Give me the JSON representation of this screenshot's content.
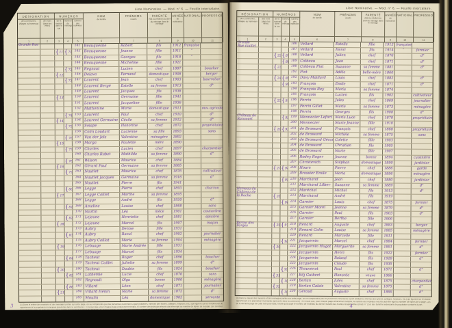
{
  "scan": {
    "caption": "Liste Nominative. — Mod. n° 6. — Feuille intercalaire.",
    "ink_color": "#7a57a2",
    "paper_color": "#e9e2cb",
    "backdrop_color": "#12100c",
    "footnote_lines": [
      "(1) Dans le relevé des maisons et des ménages portés sur cette page, on ne comprendra pas les personnes recensées à part (militaires, internes des lycées, collèges, hospices, etc.) qui figurent sur les bordereaux des établissements comptés à part, mais seulement la population",
      "appartenant à la population municipale (présente dans la commune) ; il s'ensuit que, pour chaque page entièrement remplie, le nombre des individus inscrits doit être égal au nombre de lignes de la page. Les communes à population comptée à part porteront, par suite, l'indication du numéro",
      "de la dernière page de cette liste pour total, l'ordre qu'occupe le numéro de l'individu du dernier bulletin des feuilles récapitulatives (mod. n° 2) et des bulletins individuels de population comptée à part."
    ]
  },
  "header": {
    "designation": {
      "title": "DÉSIGNATION",
      "sub": [
        "des communes, villages ou hameaux",
        "des rues (dans les villes)"
      ]
    },
    "numeros": {
      "title": "NUMÉROS",
      "sub": [
        "de la maison dans la rue",
        "numéro du ménage",
        "numéro des individus"
      ]
    },
    "columns": [
      {
        "title": "NOM",
        "sub": "de famille"
      },
      {
        "title": "PRÉNOMS",
        "sub": "usuels"
      },
      {
        "title": "PARENTÉ",
        "sub": "état ou relation au chef du ménage dans le ménage"
      },
      {
        "title": "ANNÉE",
        "sub": "de naissance"
      },
      {
        "title": "NATIONALITÉ",
        "sub": ""
      },
      {
        "title": "PROFESSION",
        "sub": ""
      }
    ],
    "col_numbers": [
      "1",
      "2",
      "3",
      "4",
      "5",
      "6",
      "7",
      "8",
      "9",
      "10",
      "11"
    ]
  },
  "pages": [
    {
      "side": "left",
      "mark": "3",
      "rows": [
        [
          "Grande Rue",
          "",
          "",
          "141",
          "Beauquesne",
          "Robert",
          "fils",
          "1912",
          "française",
          ""
        ],
        [
          "",
          "11",
          "71",
          "142",
          "Beauquesne",
          "Jeanne",
          "fille",
          "1911",
          "″",
          ""
        ],
        [
          "",
          "",
          "",
          "143",
          "Beauquesne",
          "Georges",
          "fils",
          "1918",
          "″",
          ""
        ],
        [
          "",
          "",
          "",
          "144",
          "Beauquesne",
          "Micheline",
          "fille",
          "1921",
          "",
          ""
        ],
        [
          "",
          "",
          "72",
          "145",
          "Regnaut",
          "Lucien",
          "chef",
          "1887",
          "",
          "boucher"
        ],
        [
          "",
          "12",
          "",
          "146",
          "Delava",
          "Fernand",
          "domestique",
          "1908",
          "",
          "berger"
        ],
        [
          "",
          "",
          "73",
          "147",
          "Laurent",
          "Jean",
          "chef",
          "1903",
          "",
          "bourrelier"
        ],
        [
          "",
          "",
          "",
          "148",
          "Laurent Bergé",
          "Estelle",
          "sa femme",
          "1913",
          "",
          "d°"
        ],
        [
          "",
          "",
          "",
          "149",
          "Laurent",
          "Jacques",
          "fils",
          "1938",
          "",
          ""
        ],
        [
          "",
          "13",
          "",
          "150",
          "Laurent",
          "Germaine",
          "fille",
          "1941",
          "",
          ""
        ],
        [
          "",
          "",
          "",
          "151",
          "Laurent",
          "Jacqueline",
          "fille",
          "1936",
          "",
          ""
        ],
        [
          "",
          "",
          "",
          "152",
          "Mathonine",
          "Marie",
          "domestique",
          "1911",
          "",
          "ouv. agricole"
        ],
        [
          "",
          "",
          "74",
          "153",
          "Laurent",
          "Paul",
          "chef",
          "1910",
          "",
          "d°"
        ],
        [
          "",
          "14",
          "",
          "154",
          "Laurent Germaine",
          "Cécile",
          "sa femme",
          "1912",
          "",
          "d°"
        ],
        [
          "",
          "",
          "75",
          "155",
          "Solape",
          "Honorine",
          "chef",
          "1872",
          "",
          "propriétaire"
        ],
        [
          "",
          "",
          "",
          "156",
          "Colin Loudart",
          "Lucienne",
          "sa fille",
          "1893",
          "",
          "sans"
        ],
        [
          "",
          "",
          "76",
          "157",
          "Van der Jelz",
          "Valentine",
          "ménagère",
          "1892",
          "",
          ""
        ],
        [
          "",
          "15",
          "",
          "158",
          "Marga",
          "Paulette",
          "mère",
          "1890",
          "",
          ""
        ],
        [
          "",
          "",
          "77",
          "159",
          "Charles",
          "Lucien",
          "chef",
          "1897",
          "",
          "charpentier"
        ],
        [
          "",
          "",
          "",
          "160",
          "Charles Rabet",
          "Mathilde",
          "sa femme",
          "1890",
          "",
          "d°"
        ],
        [
          "",
          "",
          "78",
          "161",
          "Wilson",
          "Maurice",
          "chef",
          "1884",
          "",
          ""
        ],
        [
          "",
          "16",
          "",
          "162",
          "Gérard Paul",
          "Germaine",
          "sa femme",
          "1885",
          "",
          ""
        ],
        [
          "",
          "",
          "79",
          "163",
          "Nautlet",
          "Maurice",
          "chef",
          "1876",
          "",
          "cultivateur"
        ],
        [
          "",
          "",
          "",
          "164",
          "Nautlet Jacques",
          "Germaine",
          "sa femme",
          "1916",
          "",
          "d°"
        ],
        [
          "",
          "",
          "",
          "165",
          "Nautlet",
          "Pierre",
          "fils",
          "1941",
          "",
          ""
        ],
        [
          "",
          "",
          "80",
          "166",
          "Legge",
          "Pierre",
          "chef",
          "1893",
          "",
          "charron"
        ],
        [
          "",
          "17",
          "",
          "167",
          "Legge Caillet",
          "Marthe",
          "sa femme",
          "1895",
          "",
          ""
        ],
        [
          "",
          "",
          "",
          "168",
          "Legge",
          "André",
          "fils",
          "1920",
          "",
          "d°"
        ],
        [
          "",
          "",
          "81",
          "169",
          "Ameline",
          "Louise",
          "chef",
          "1868",
          "",
          "sans"
        ],
        [
          "",
          "",
          "",
          "170",
          "Martin",
          "Léa",
          "nièce",
          "1901",
          "",
          "couturière"
        ],
        [
          "",
          "",
          "82",
          "171",
          "Lejeune",
          "Henriette",
          "chef",
          "1881",
          "",
          "épicière"
        ],
        [
          "",
          "18",
          "",
          "172",
          "Lejeune",
          "Marcel",
          "fils",
          "1907",
          "",
          "maçon"
        ],
        [
          "",
          "",
          "",
          "173",
          "Aubry",
          "Denise",
          "fille",
          "1931",
          "",
          ""
        ],
        [
          "",
          "",
          "83",
          "174",
          "Aubry",
          "Raoul",
          "chef",
          "1902",
          "",
          "journalier"
        ],
        [
          "",
          "",
          "",
          "175",
          "Aubry Caillat",
          "Marie",
          "sa femme",
          "1904",
          "",
          "ménagère"
        ],
        [
          "",
          "19",
          "",
          "176",
          "Lebuage",
          "Marie Andrée",
          "fille",
          "1931",
          "",
          ""
        ],
        [
          "",
          "",
          "",
          "177",
          "Lebuage",
          "Marcel",
          "fils",
          "1934",
          "",
          ""
        ],
        [
          "",
          "",
          "84",
          "178",
          "Tacheut",
          "Roger",
          "chef",
          "1896",
          "",
          "boucher"
        ],
        [
          "",
          "",
          "",
          "179",
          "Tacheut Caillet",
          "Juliette",
          "sa femme",
          "1899",
          "",
          "d°"
        ],
        [
          "",
          "20",
          "",
          "180",
          "Tacheut",
          "Daubin",
          "fils",
          "1924",
          "",
          "boucher"
        ],
        [
          "",
          "",
          "85",
          "181",
          "Lathemie",
          "Lucie",
          "chef",
          "1870",
          "",
          "sans"
        ],
        [
          "",
          "",
          "",
          "182",
          "Regnault",
          "Olga",
          "bonne",
          "1900",
          "",
          "ménagère"
        ],
        [
          "",
          "",
          "86",
          "183",
          "Villard",
          "Léon",
          "chef",
          "1871",
          "",
          "journalier"
        ],
        [
          "",
          "21",
          "",
          "184",
          "Villard Hénin",
          "Marie",
          "sa femme",
          "1872",
          "",
          "d°"
        ],
        [
          "",
          "",
          "",
          "185",
          "Moulin",
          "Léa",
          "domestique",
          "1902",
          "",
          "servante"
        ]
      ]
    },
    {
      "side": "right",
      "mark": "4",
      "rows": [
        [
          "Grande Rue (suite)",
          "",
          "",
          "186",
          "Vellard",
          "Estelle",
          "fille",
          "1912",
          "française",
          ""
        ],
        [
          "",
          "",
          "",
          "187",
          "Vellard",
          "Henri",
          "fils",
          "1914",
          "″",
          "fermier"
        ],
        [
          "",
          "22",
          "87",
          "188",
          "Vellard",
          "Julien",
          "chef",
          "1876",
          "",
          "d°"
        ],
        [
          "",
          "",
          "88",
          "189",
          "Colbeau",
          "Jean",
          "chef",
          "1871",
          "",
          "d°"
        ],
        [
          "",
          "23",
          "",
          "190",
          "Colbeau Piot",
          "Suzanne",
          "sa femme",
          "1881",
          "",
          "d°"
        ],
        [
          "",
          "",
          "",
          "191",
          "Piot",
          "Adèle",
          "belle-mère",
          "1860",
          "",
          ""
        ],
        [
          "",
          "24",
          "89",
          "192",
          "Davy Maillard",
          "Louis",
          "chef",
          "1882",
          "",
          "d°"
        ],
        [
          "",
          "",
          "90",
          "193",
          "François",
          "Emile",
          "chef",
          "1871",
          "",
          "d°"
        ],
        [
          "",
          "",
          "",
          "194",
          "François Rey",
          "Maria",
          "sa femme",
          "1874",
          "",
          ""
        ],
        [
          "",
          "",
          "",
          "195",
          "François",
          "Lucien",
          "fils",
          "1902",
          "",
          "cultivateur"
        ],
        [
          "",
          "25",
          "91",
          "196",
          "Perrin",
          "Jules",
          "chef",
          "1869",
          "",
          "journalier"
        ],
        [
          "",
          "",
          "",
          "197",
          "Perrin Gillet",
          "Marie",
          "sa femme",
          "1873",
          "",
          "ménagère"
        ],
        [
          "",
          "",
          "",
          "198",
          "Perrin",
          "Georges",
          "fils",
          "1908",
          "",
          "d°"
        ],
        [
          "Château de Rancourt",
          "",
          "92",
          "199",
          "Mennecier Lefort",
          "Marie Luce",
          "chef",
          "1878",
          "",
          "propriétaire"
        ],
        [
          "",
          "",
          "",
          "200",
          "Mennecier",
          "Marie Jeanne",
          "fille",
          "1910",
          "",
          ""
        ],
        [
          "",
          "26",
          "93",
          "201",
          "de Brossard",
          "François",
          "chef",
          "1868",
          "",
          "propriétaire"
        ],
        [
          "",
          "",
          "",
          "202",
          "de Brossard",
          "Michèle",
          "sa femme",
          "1875",
          "",
          "sans"
        ],
        [
          "",
          "",
          "",
          "203",
          "de Brossard Gérard",
          "Colette",
          "fille",
          "1903",
          "",
          ""
        ],
        [
          "",
          "",
          "",
          "204",
          "de Brossard",
          "Christian",
          "fils",
          "1905",
          "",
          ""
        ],
        [
          "",
          "",
          "",
          "205",
          "de Brossard",
          "Marie",
          "fille",
          "1907",
          "",
          ""
        ],
        [
          "",
          "",
          "",
          "206",
          "Rodey Roger",
          "Jeanne",
          "bonne",
          "1894",
          "",
          "cuisinière"
        ],
        [
          "",
          "",
          "",
          "207",
          "Christevich",
          "Stéphan",
          "domestique",
          "1890",
          "",
          "jardinier"
        ],
        [
          "",
          "27",
          "94",
          "208",
          "Hours",
          "Pierre",
          "chef",
          "1886",
          "",
          "garde"
        ],
        [
          "",
          "",
          "",
          "209",
          "Brossier Emile",
          "Maria",
          "domestique",
          "1896",
          "",
          "ménagère"
        ],
        [
          "",
          "",
          "95",
          "210",
          "Marchand",
          "Jean",
          "chef",
          "1880",
          "",
          "jardinier"
        ],
        [
          "",
          "",
          "",
          "211",
          "Marchand Lilber",
          "Suzanne",
          "sa femme",
          "1889",
          "",
          "d°"
        ],
        [
          "Hameau du Château de la Roche",
          "",
          "",
          "212",
          "Maréchal",
          "Michel",
          "fils",
          "1913",
          "",
          "d°"
        ],
        [
          "",
          "28",
          "",
          "213",
          "Marchand",
          "André",
          "fils",
          "1919",
          "",
          ""
        ],
        [
          "",
          "",
          "96",
          "214",
          "Garnier",
          "Louis",
          "chef",
          "1875",
          "",
          "fermier"
        ],
        [
          "",
          "",
          "",
          "215",
          "Garnier Morel",
          "Jeanne",
          "sa femme",
          "1879",
          "",
          "d°"
        ],
        [
          "",
          "",
          "",
          "216",
          "Garnier",
          "Paul",
          "fils",
          "1903",
          "",
          "d°"
        ],
        [
          "",
          "",
          "",
          "217",
          "Garnier",
          "Berthe",
          "fille",
          "1906",
          "",
          ""
        ],
        [
          "Ferme des Forges",
          "29",
          "97",
          "218",
          "Renard",
          "Auguste",
          "chef",
          "1883",
          "",
          "berger"
        ],
        [
          "",
          "",
          "",
          "219",
          "Renard Colin",
          "Louise",
          "sa femme",
          "1885",
          "",
          "ménagère"
        ],
        [
          "",
          "",
          "",
          "220",
          "Renard",
          "Marcelle",
          "fille",
          "1911",
          "",
          ""
        ],
        [
          "",
          "",
          "98",
          "221",
          "Jacquemin",
          "Marcel",
          "chef",
          "1884",
          "",
          "fermier"
        ],
        [
          "",
          "30",
          "",
          "222",
          "Jacquemin Hugot",
          "Marguerite",
          "sa femme",
          "1891",
          "",
          "d°"
        ],
        [
          "",
          "",
          "",
          "223",
          "Jacquemin",
          "Henri",
          "fils",
          "1922",
          "",
          "fermier"
        ],
        [
          "",
          "",
          "",
          "224",
          "Jacquemin",
          "Roland",
          "fils",
          "1928",
          "",
          "d°"
        ],
        [
          "",
          "",
          "",
          "225",
          "Jacquemin",
          "Claude",
          "fils",
          "1935",
          "",
          ""
        ],
        [
          "",
          "",
          "99",
          "226",
          "Thouvenot",
          "Paul",
          "chef",
          "1871",
          "",
          "d°"
        ],
        [
          "",
          "31",
          "",
          "227",
          "Bilj Guibert",
          "Honorée",
          "veuve",
          "1866",
          "",
          ""
        ],
        [
          "",
          "",
          "100",
          "228",
          "Berlan",
          "Jules",
          "chef",
          "1875",
          "",
          "charpentier"
        ],
        [
          "",
          "32",
          "",
          "229",
          "Berlan Galais",
          "Valentine",
          "sa femme",
          "1875",
          "",
          "d°"
        ],
        [
          "",
          "",
          "101",
          "230",
          "Géraud",
          "Auguste",
          "chef",
          "1866",
          "",
          "d°"
        ]
      ]
    }
  ]
}
